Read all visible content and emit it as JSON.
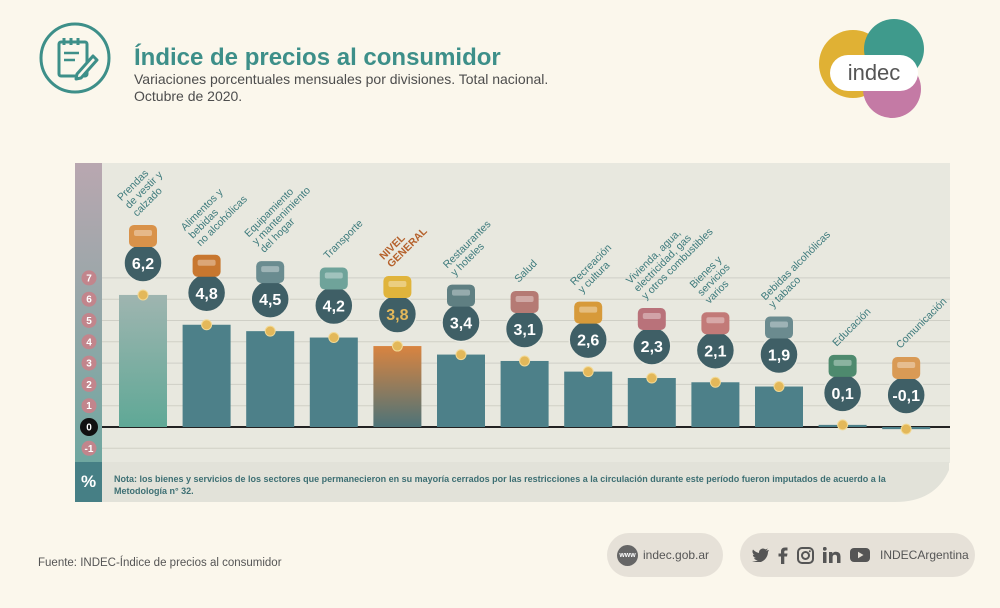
{
  "header": {
    "title": "Índice de precios al consumidor",
    "subtitle_lines": [
      "Variaciones porcentuales mensuales por divisiones. Total nacional.",
      "Octubre de 2020."
    ]
  },
  "logo": {
    "text": "indec"
  },
  "colors": {
    "teal": "#4d8089",
    "orange": "#c76b2e",
    "mint": "#5fa896",
    "gold": "#e3b85a",
    "panel": "#e8e8df"
  },
  "chart_data": {
    "type": "bar",
    "categories": [
      {
        "label": [
          "Prendas",
          "de vestir y",
          "calzado"
        ],
        "value": 6.2,
        "display": "6,2",
        "icon": "shirt-icon"
      },
      {
        "label": [
          "Alimentos y",
          "bebidas",
          "no alcohólicas"
        ],
        "value": 4.8,
        "display": "4,8",
        "icon": "roast-chicken-icon"
      },
      {
        "label": [
          "Equipamiento",
          "y mantenimiento",
          "del hogar"
        ],
        "value": 4.5,
        "display": "4,5",
        "icon": "washing-machine-icon"
      },
      {
        "label": [
          "Transporte"
        ],
        "value": 4.2,
        "display": "4,2",
        "icon": "car-icon"
      },
      {
        "label": [
          "NIVEL",
          "GENERAL"
        ],
        "value": 3.8,
        "display": "3,8",
        "icon": "shopping-basket-icon"
      },
      {
        "label": [
          "Restaurantes",
          "y hoteles"
        ],
        "value": 3.4,
        "display": "3,4",
        "icon": "restaurant-icon"
      },
      {
        "label": [
          "Salud"
        ],
        "value": 3.1,
        "display": "3,1",
        "icon": "medical-kit-icon"
      },
      {
        "label": [
          "Recreación",
          "y cultura"
        ],
        "value": 2.6,
        "display": "2,6",
        "icon": "theater-icon"
      },
      {
        "label": [
          "Vivienda, agua,",
          "electricidad, gas",
          "y otros combustibles"
        ],
        "value": 2.3,
        "display": "2,3",
        "icon": "lightbulb-icon"
      },
      {
        "label": [
          "Bienes y",
          "servicios",
          "varios"
        ],
        "value": 2.1,
        "display": "2,1",
        "icon": "comb-scissors-icon"
      },
      {
        "label": [
          "Bebidas alcohólicas",
          "y tabaco"
        ],
        "value": 1.9,
        "display": "1,9",
        "icon": "bottle-icon"
      },
      {
        "label": [
          "Educación"
        ],
        "value": 0.1,
        "display": "0,1",
        "icon": "book-icon"
      },
      {
        "label": [
          "Comunicación"
        ],
        "value": -0.1,
        "display": "-0,1",
        "icon": "phone-icon"
      }
    ],
    "y_ticks": [
      "7",
      "6",
      "5",
      "4",
      "3",
      "2",
      "1",
      "0",
      "-1"
    ],
    "ylim": [
      -1,
      7
    ],
    "highlight": "NIVEL GENERAL",
    "grid": true
  },
  "note": {
    "symbol": "%",
    "text": "Nota: los bienes y servicios de los sectores que permanecieron en su mayoría cerrados por las restricciones a la circulación durante este período fueron imputados de acuerdo a la Metodología n° 32."
  },
  "footer": {
    "source": "Fuente: INDEC-Índice de precios al consumidor",
    "web_badge": "www",
    "web": "indec.gob.ar",
    "social_handle": "INDECArgentina"
  }
}
